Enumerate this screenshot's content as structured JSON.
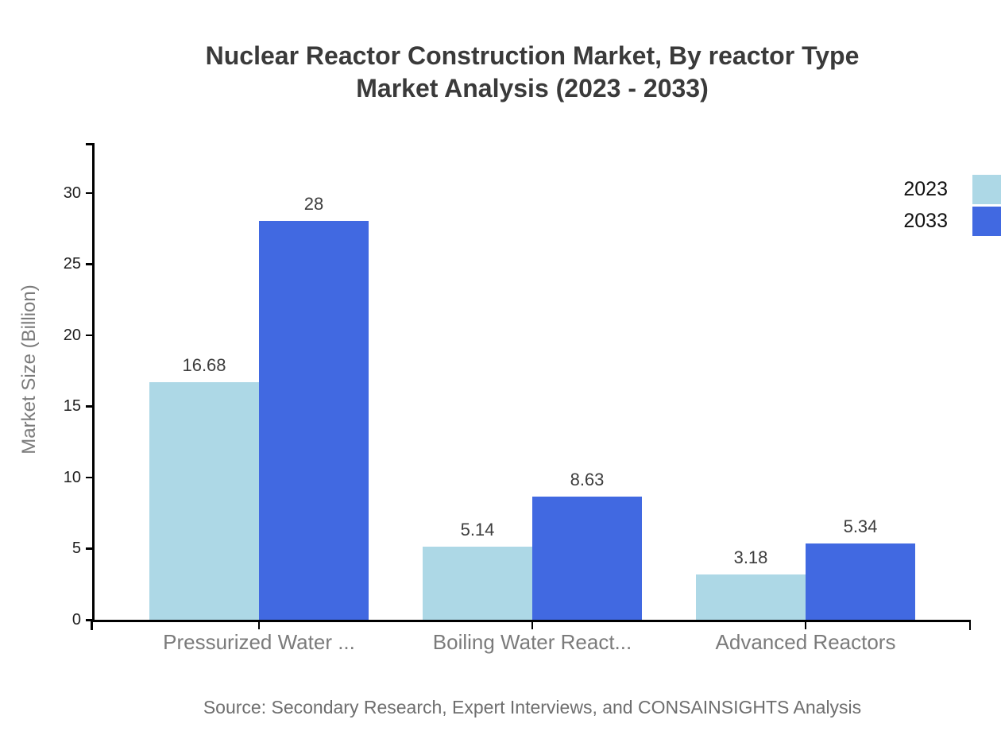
{
  "chart": {
    "title_line1": "Nuclear Reactor Construction Market, By reactor Type",
    "title_line2": "Market Analysis (2023 - 2033)",
    "source": "Source: Secondary Research, Expert Interviews, and CONSAINSIGHTS Analysis"
  },
  "chart_data": {
    "type": "bar",
    "title": "Nuclear Reactor Construction Market, By reactor Type Market Analysis (2023 - 2033)",
    "categories": [
      "Pressurized Water ...",
      "Boiling Water React...",
      "Advanced Reactors"
    ],
    "series": [
      {
        "name": "2023",
        "color": "#ADD8E6",
        "values": [
          16.68,
          5.14,
          3.18
        ]
      },
      {
        "name": "2033",
        "color": "#4169E1",
        "values": [
          28,
          8.63,
          5.34
        ]
      }
    ],
    "ylabel": "Market Size (Billion)",
    "xlabel": "",
    "yticks": [
      0,
      5,
      10,
      15,
      20,
      25,
      30
    ],
    "ylim": [
      0,
      33.5
    ],
    "grid": false,
    "legend_position": "top-right",
    "value_labels": true,
    "colors": {
      "axis": "#000000",
      "tick_label": "#1f1f1f",
      "value_label": "#3d3d3d",
      "category_label": "#7b7b7b",
      "axis_title": "#7b7b7b",
      "source_text": "#6e6e6e",
      "title": "#3a3a3a",
      "legend_text": "#111111"
    }
  }
}
